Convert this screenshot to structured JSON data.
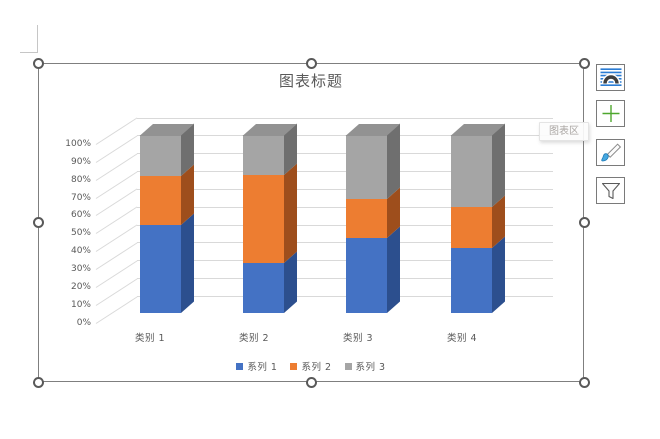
{
  "tooltip": {
    "text": "图表区"
  },
  "chart_data": {
    "type": "bar",
    "subtype": "column-3d-100pct-stacked",
    "title": "图表标题",
    "categories": [
      "类别 1",
      "类别 2",
      "类别 3",
      "类别 4"
    ],
    "series": [
      {
        "name": "系列 1",
        "values_pct": [
          49.4,
          28.1,
          42.2,
          36.6
        ],
        "color": "#4472C4",
        "side_color": "#2C4F8E"
      },
      {
        "name": "系列 2",
        "values_pct": [
          27.6,
          49.4,
          21.7,
          22.8
        ],
        "color": "#ED7D31",
        "side_color": "#9E4E1C"
      },
      {
        "name": "系列 3",
        "values_pct": [
          23.0,
          22.5,
          36.1,
          40.6
        ],
        "color": "#A5A5A5",
        "side_color": "#6F6F6F",
        "top_color": "#929292"
      }
    ],
    "y_ticks": [
      "0%",
      "10%",
      "20%",
      "30%",
      "40%",
      "50%",
      "60%",
      "70%",
      "80%",
      "90%",
      "100%"
    ],
    "ylim": [
      0,
      1
    ],
    "grid": true,
    "legend_position": "bottom"
  },
  "side_panel": {
    "buttons": [
      {
        "icon": "layout-options-icon"
      },
      {
        "icon": "chart-elements-plus-icon"
      },
      {
        "icon": "chart-styles-brush-icon"
      },
      {
        "icon": "chart-filters-funnel-icon"
      }
    ]
  },
  "colors": {
    "text": "#595959",
    "gridline": "#D9D9D9",
    "selection_border": "#7F7F7F",
    "plus_green": "#4EA72E",
    "layout_line_blue": "#2B7CD3",
    "brush_blue": "#46A8E0"
  }
}
